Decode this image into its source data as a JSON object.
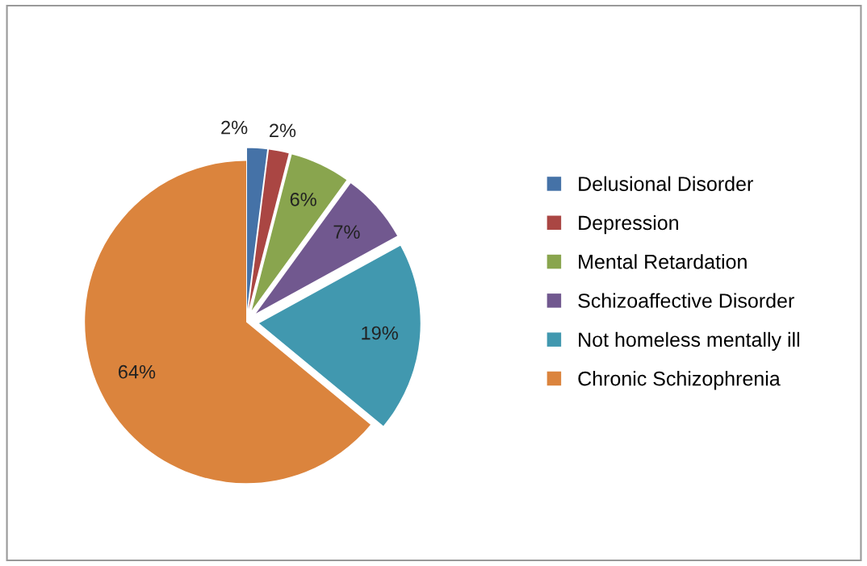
{
  "chart_data": {
    "type": "pie",
    "categories": [
      "Delusional Disorder",
      "Depression",
      "Mental Retardation",
      "Schizoaffective Disorder",
      "Not homeless mentally ill",
      "Chronic Schizophrenia"
    ],
    "values": [
      2,
      2,
      6,
      7,
      19,
      64
    ],
    "value_labels": [
      "2%",
      "2%",
      "6%",
      "7%",
      "19%",
      "64%"
    ],
    "colors": [
      "#4572a7",
      "#aa4643",
      "#89a54e",
      "#71588f",
      "#4198af",
      "#db843d"
    ],
    "legend": "right"
  }
}
